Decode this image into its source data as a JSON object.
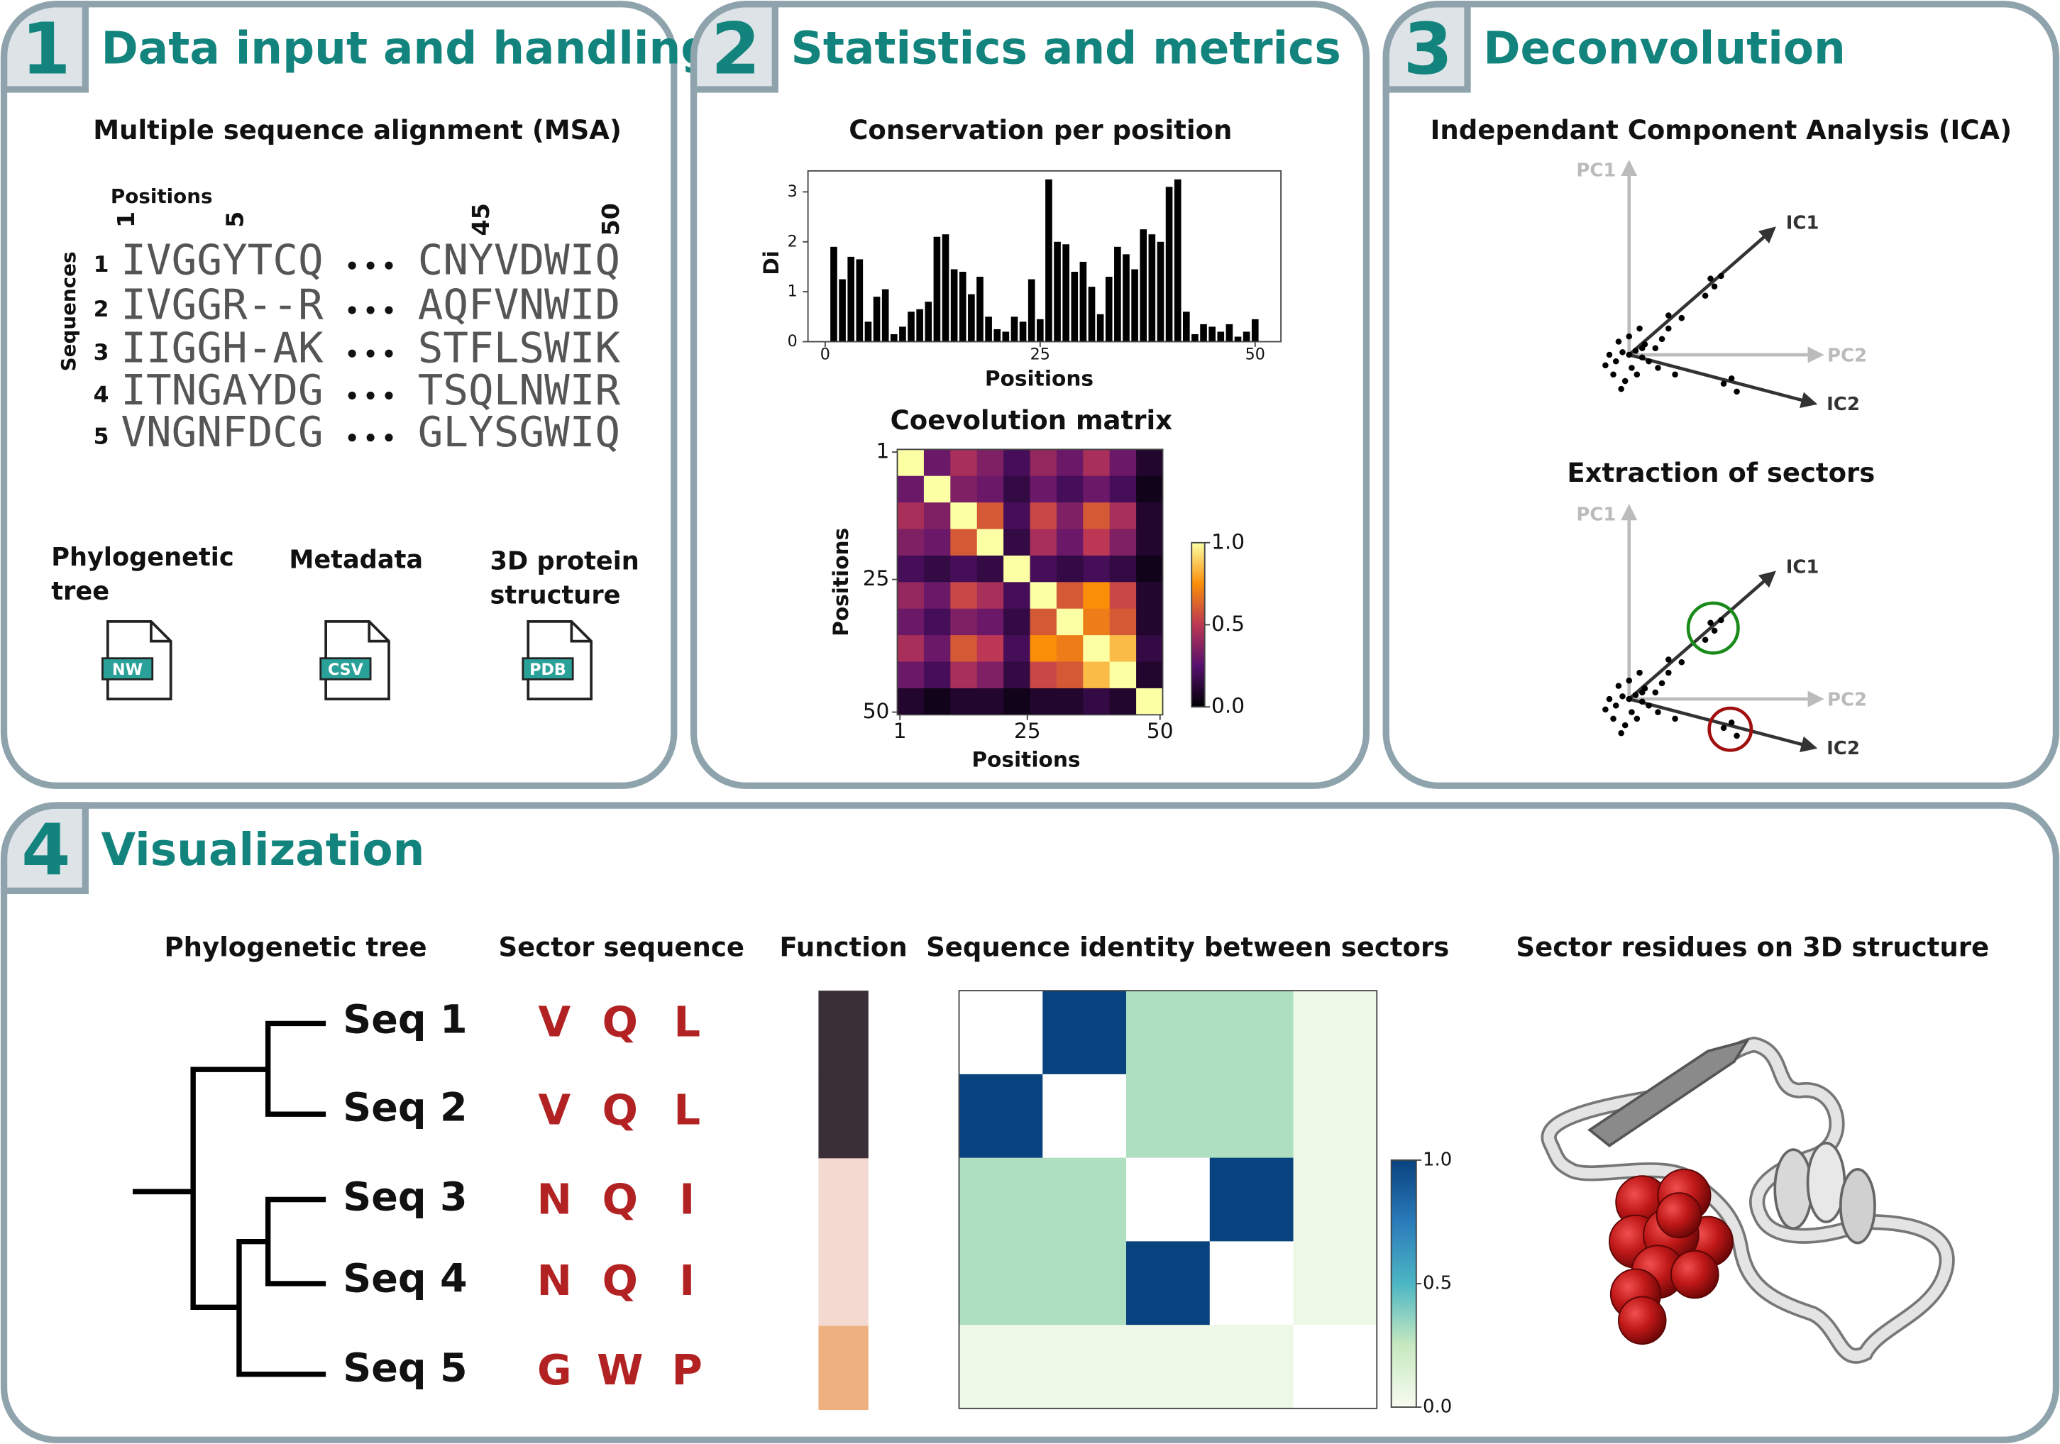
{
  "panels": [
    {
      "number": "1",
      "title": "Data input and handling"
    },
    {
      "number": "2",
      "title": "Statistics and metrics"
    },
    {
      "number": "3",
      "title": "Deconvolution"
    },
    {
      "number": "4",
      "title": "Visualization"
    }
  ],
  "msa": {
    "title": "Multiple sequence alignment (MSA)",
    "positions_label": "Positions",
    "sequences_label": "Sequences",
    "position_ticks": [
      "1",
      "5",
      "45",
      "50"
    ],
    "rows": [
      {
        "index": "1",
        "left": "IVGGYTCQ",
        "right": "CNYVDWIQ"
      },
      {
        "index": "2",
        "left": "IVGGR--R",
        "right": "AQFVNWID"
      },
      {
        "index": "3",
        "left": "IIGGH-AK",
        "right": "STFLSWIK"
      },
      {
        "index": "4",
        "left": "ITNGAYDG",
        "right": "TSQLNWIR"
      },
      {
        "index": "5",
        "left": "VNGNFDCG",
        "right": "GLYSGWIQ"
      }
    ]
  },
  "inputs": [
    {
      "label_lines": [
        "Phylogenetic",
        "tree"
      ],
      "file": "NW"
    },
    {
      "label_lines": [
        "Metadata"
      ],
      "file": "CSV"
    },
    {
      "label_lines": [
        "3D protein",
        "structure"
      ],
      "file": "PDB"
    }
  ],
  "conservation": {
    "type": "bar",
    "title": "Conservation per position",
    "x_label": "Positions",
    "y_label": "Di",
    "color": "#000000",
    "x": [
      1,
      2,
      3,
      4,
      5,
      6,
      7,
      8,
      9,
      10,
      11,
      12,
      13,
      14,
      15,
      16,
      17,
      18,
      19,
      20,
      21,
      22,
      23,
      24,
      25,
      26,
      27,
      28,
      29,
      30,
      31,
      32,
      33,
      34,
      35,
      36,
      37,
      38,
      39,
      40,
      41,
      42,
      43,
      44,
      45,
      46,
      47,
      48,
      49,
      50
    ],
    "values": [
      1.9,
      1.25,
      1.7,
      1.65,
      0.4,
      0.9,
      1.05,
      0.15,
      0.3,
      0.6,
      0.65,
      0.8,
      2.1,
      2.15,
      1.45,
      1.4,
      0.95,
      1.3,
      0.5,
      0.25,
      0.2,
      0.5,
      0.4,
      1.25,
      0.45,
      3.25,
      2.0,
      1.95,
      1.4,
      1.6,
      1.1,
      0.55,
      1.3,
      1.9,
      1.75,
      1.45,
      2.25,
      2.15,
      2.0,
      3.1,
      3.25,
      0.6,
      0.15,
      0.35,
      0.3,
      0.2,
      0.35,
      0.1,
      0.2,
      0.45
    ],
    "xlim": [
      -2,
      53
    ],
    "ylim": [
      0,
      3.42
    ],
    "xticks": [
      0,
      25,
      50
    ],
    "yticks": [
      0,
      1,
      2,
      3
    ]
  },
  "coevolution": {
    "type": "heatmap",
    "title": "Coevolution matrix",
    "x_label": "Positions",
    "y_label": "Positions",
    "colormap": "inferno",
    "values": [
      [
        1.0,
        0.3,
        0.45,
        0.35,
        0.2,
        0.4,
        0.3,
        0.45,
        0.3,
        0.1
      ],
      [
        0.3,
        1.0,
        0.35,
        0.3,
        0.15,
        0.3,
        0.2,
        0.3,
        0.2,
        0.05
      ],
      [
        0.45,
        0.35,
        1.0,
        0.6,
        0.2,
        0.55,
        0.35,
        0.6,
        0.45,
        0.1
      ],
      [
        0.35,
        0.3,
        0.6,
        1.0,
        0.15,
        0.45,
        0.3,
        0.5,
        0.35,
        0.1
      ],
      [
        0.2,
        0.15,
        0.2,
        0.15,
        1.0,
        0.2,
        0.15,
        0.2,
        0.15,
        0.05
      ],
      [
        0.4,
        0.3,
        0.55,
        0.45,
        0.2,
        1.0,
        0.6,
        0.75,
        0.55,
        0.1
      ],
      [
        0.3,
        0.2,
        0.35,
        0.3,
        0.15,
        0.6,
        1.0,
        0.7,
        0.6,
        0.1
      ],
      [
        0.45,
        0.3,
        0.6,
        0.5,
        0.2,
        0.75,
        0.7,
        1.0,
        0.85,
        0.15
      ],
      [
        0.3,
        0.2,
        0.45,
        0.35,
        0.15,
        0.55,
        0.6,
        0.85,
        1.0,
        0.1
      ],
      [
        0.1,
        0.05,
        0.1,
        0.1,
        0.05,
        0.1,
        0.1,
        0.15,
        0.1,
        1.0
      ]
    ],
    "xlim": [
      0.5,
      50.5
    ],
    "ylim": [
      0.5,
      50.5
    ],
    "xticks": [
      1,
      25,
      50
    ],
    "yticks": [
      1,
      25,
      50
    ],
    "colorbar_lim": [
      0,
      1
    ],
    "colorbar_ticks": [
      {
        "value": 0,
        "label": "0.0"
      },
      {
        "value": 0.5,
        "label": "0.5"
      },
      {
        "value": 1,
        "label": "1.0"
      }
    ]
  },
  "ica": {
    "title": "Independant Component Analysis (ICA)",
    "pc1": "PC1",
    "pc2": "PC2",
    "ic1": "IC1",
    "ic2": "IC2",
    "x": [
      0,
      0.05,
      -0.05,
      0.1,
      -0.1,
      0.02,
      -0.08,
      0.12,
      0.15,
      -0.15,
      0,
      0.06,
      -0.03,
      0.2,
      -0.12,
      0.08,
      0.25,
      0.3,
      0.22,
      0.35,
      0.4,
      0.3,
      0.58,
      0.65,
      0.7,
      0.62,
      0.72,
      0.82,
      0.78,
      -0.18,
      0.1,
      -0.06
    ],
    "y": [
      0,
      0.03,
      0.02,
      -0.02,
      -0.05,
      -0.1,
      0.1,
      0.08,
      -0.05,
      0,
      0.14,
      -0.15,
      -0.2,
      0.05,
      -0.15,
      0.2,
      0.12,
      0.2,
      -0.1,
      -0.15,
      0.28,
      0.3,
      0.45,
      0.52,
      0.6,
      0.58,
      -0.22,
      -0.28,
      -0.18,
      -0.08,
      0.05,
      -0.26
    ]
  },
  "sectors": {
    "title": "Extraction of sectors"
  },
  "visualization": {
    "tree_title": "Phylogenetic tree",
    "sequence_title": "Sector sequence",
    "function_title": "Function",
    "identity_title": "Sequence identity between sectors",
    "structure_title": "Sector residues on 3D structure",
    "sequences": [
      {
        "name": "Seq 1",
        "residues": [
          "V",
          "Q",
          "L"
        ],
        "function_color": "#3b2f37"
      },
      {
        "name": "Seq 2",
        "residues": [
          "V",
          "Q",
          "L"
        ],
        "function_color": "#3b2f37"
      },
      {
        "name": "Seq 3",
        "residues": [
          "N",
          "Q",
          "I"
        ],
        "function_color": "#f3d9cf"
      },
      {
        "name": "Seq 4",
        "residues": [
          "N",
          "Q",
          "I"
        ],
        "function_color": "#f3d9cf"
      },
      {
        "name": "Seq 5",
        "residues": [
          "G",
          "W",
          "P"
        ],
        "function_color": "#efb080"
      }
    ],
    "identity": {
      "type": "heatmap",
      "colormap": "GnBu",
      "values": [
        [
          null,
          1.0,
          0.3,
          0.3,
          0.05
        ],
        [
          1.0,
          null,
          0.3,
          0.3,
          0.05
        ],
        [
          0.3,
          0.3,
          null,
          1.0,
          0.05
        ],
        [
          0.3,
          0.3,
          1.0,
          null,
          0.05
        ],
        [
          0.05,
          0.05,
          0.05,
          0.05,
          null
        ]
      ],
      "colorbar_lim": [
        0,
        1
      ],
      "colorbar_ticks": [
        {
          "value": 0,
          "label": "0.0"
        },
        {
          "value": 0.5,
          "label": "0.5"
        },
        {
          "value": 1,
          "label": "1.0"
        }
      ]
    }
  }
}
